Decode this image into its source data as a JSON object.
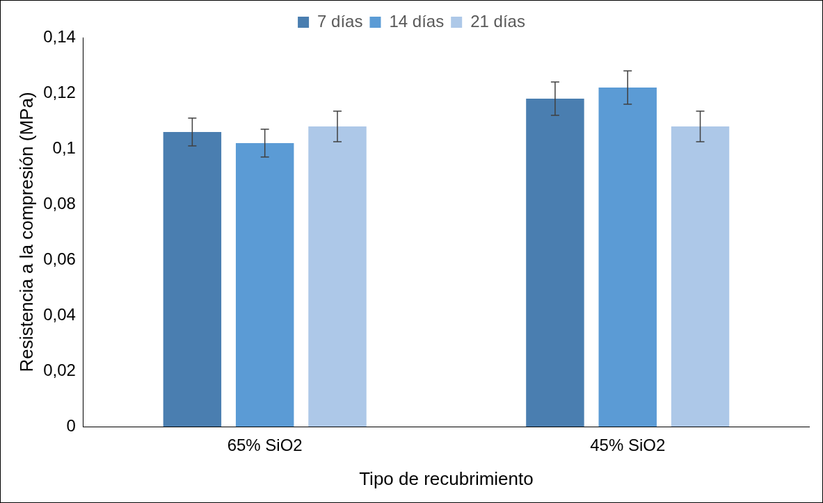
{
  "chart_data": {
    "type": "bar",
    "xlabel": "Tipo de recubrimiento",
    "ylabel": "Resistencia a la compresión (MPa)",
    "categories": [
      "65% SiO2",
      "45% SiO2"
    ],
    "series": [
      {
        "name": "7 días",
        "color": "#4a7eb0",
        "values": [
          0.106,
          0.118
        ],
        "errors": [
          0.005,
          0.006
        ]
      },
      {
        "name": "14 días",
        "color": "#5b9bd5",
        "values": [
          0.102,
          0.122
        ],
        "errors": [
          0.005,
          0.006
        ]
      },
      {
        "name": "21 días",
        "color": "#adc8e8",
        "values": [
          0.108,
          0.108
        ],
        "errors": [
          0.0055,
          0.0055
        ]
      }
    ],
    "ylim": [
      0,
      0.14
    ],
    "yticks": [
      0,
      {
        "value": 0.02,
        "label": "0,02"
      },
      {
        "value": 0.04,
        "label": "0,04"
      },
      {
        "value": 0.06,
        "label": "0,06"
      },
      {
        "value": 0.08,
        "label": "0,08"
      },
      {
        "value": 0.1,
        "label": "0,1"
      },
      {
        "value": 0.12,
        "label": "0,12"
      },
      {
        "value": 0.14,
        "label": "0,14"
      }
    ],
    "legend": "top"
  }
}
